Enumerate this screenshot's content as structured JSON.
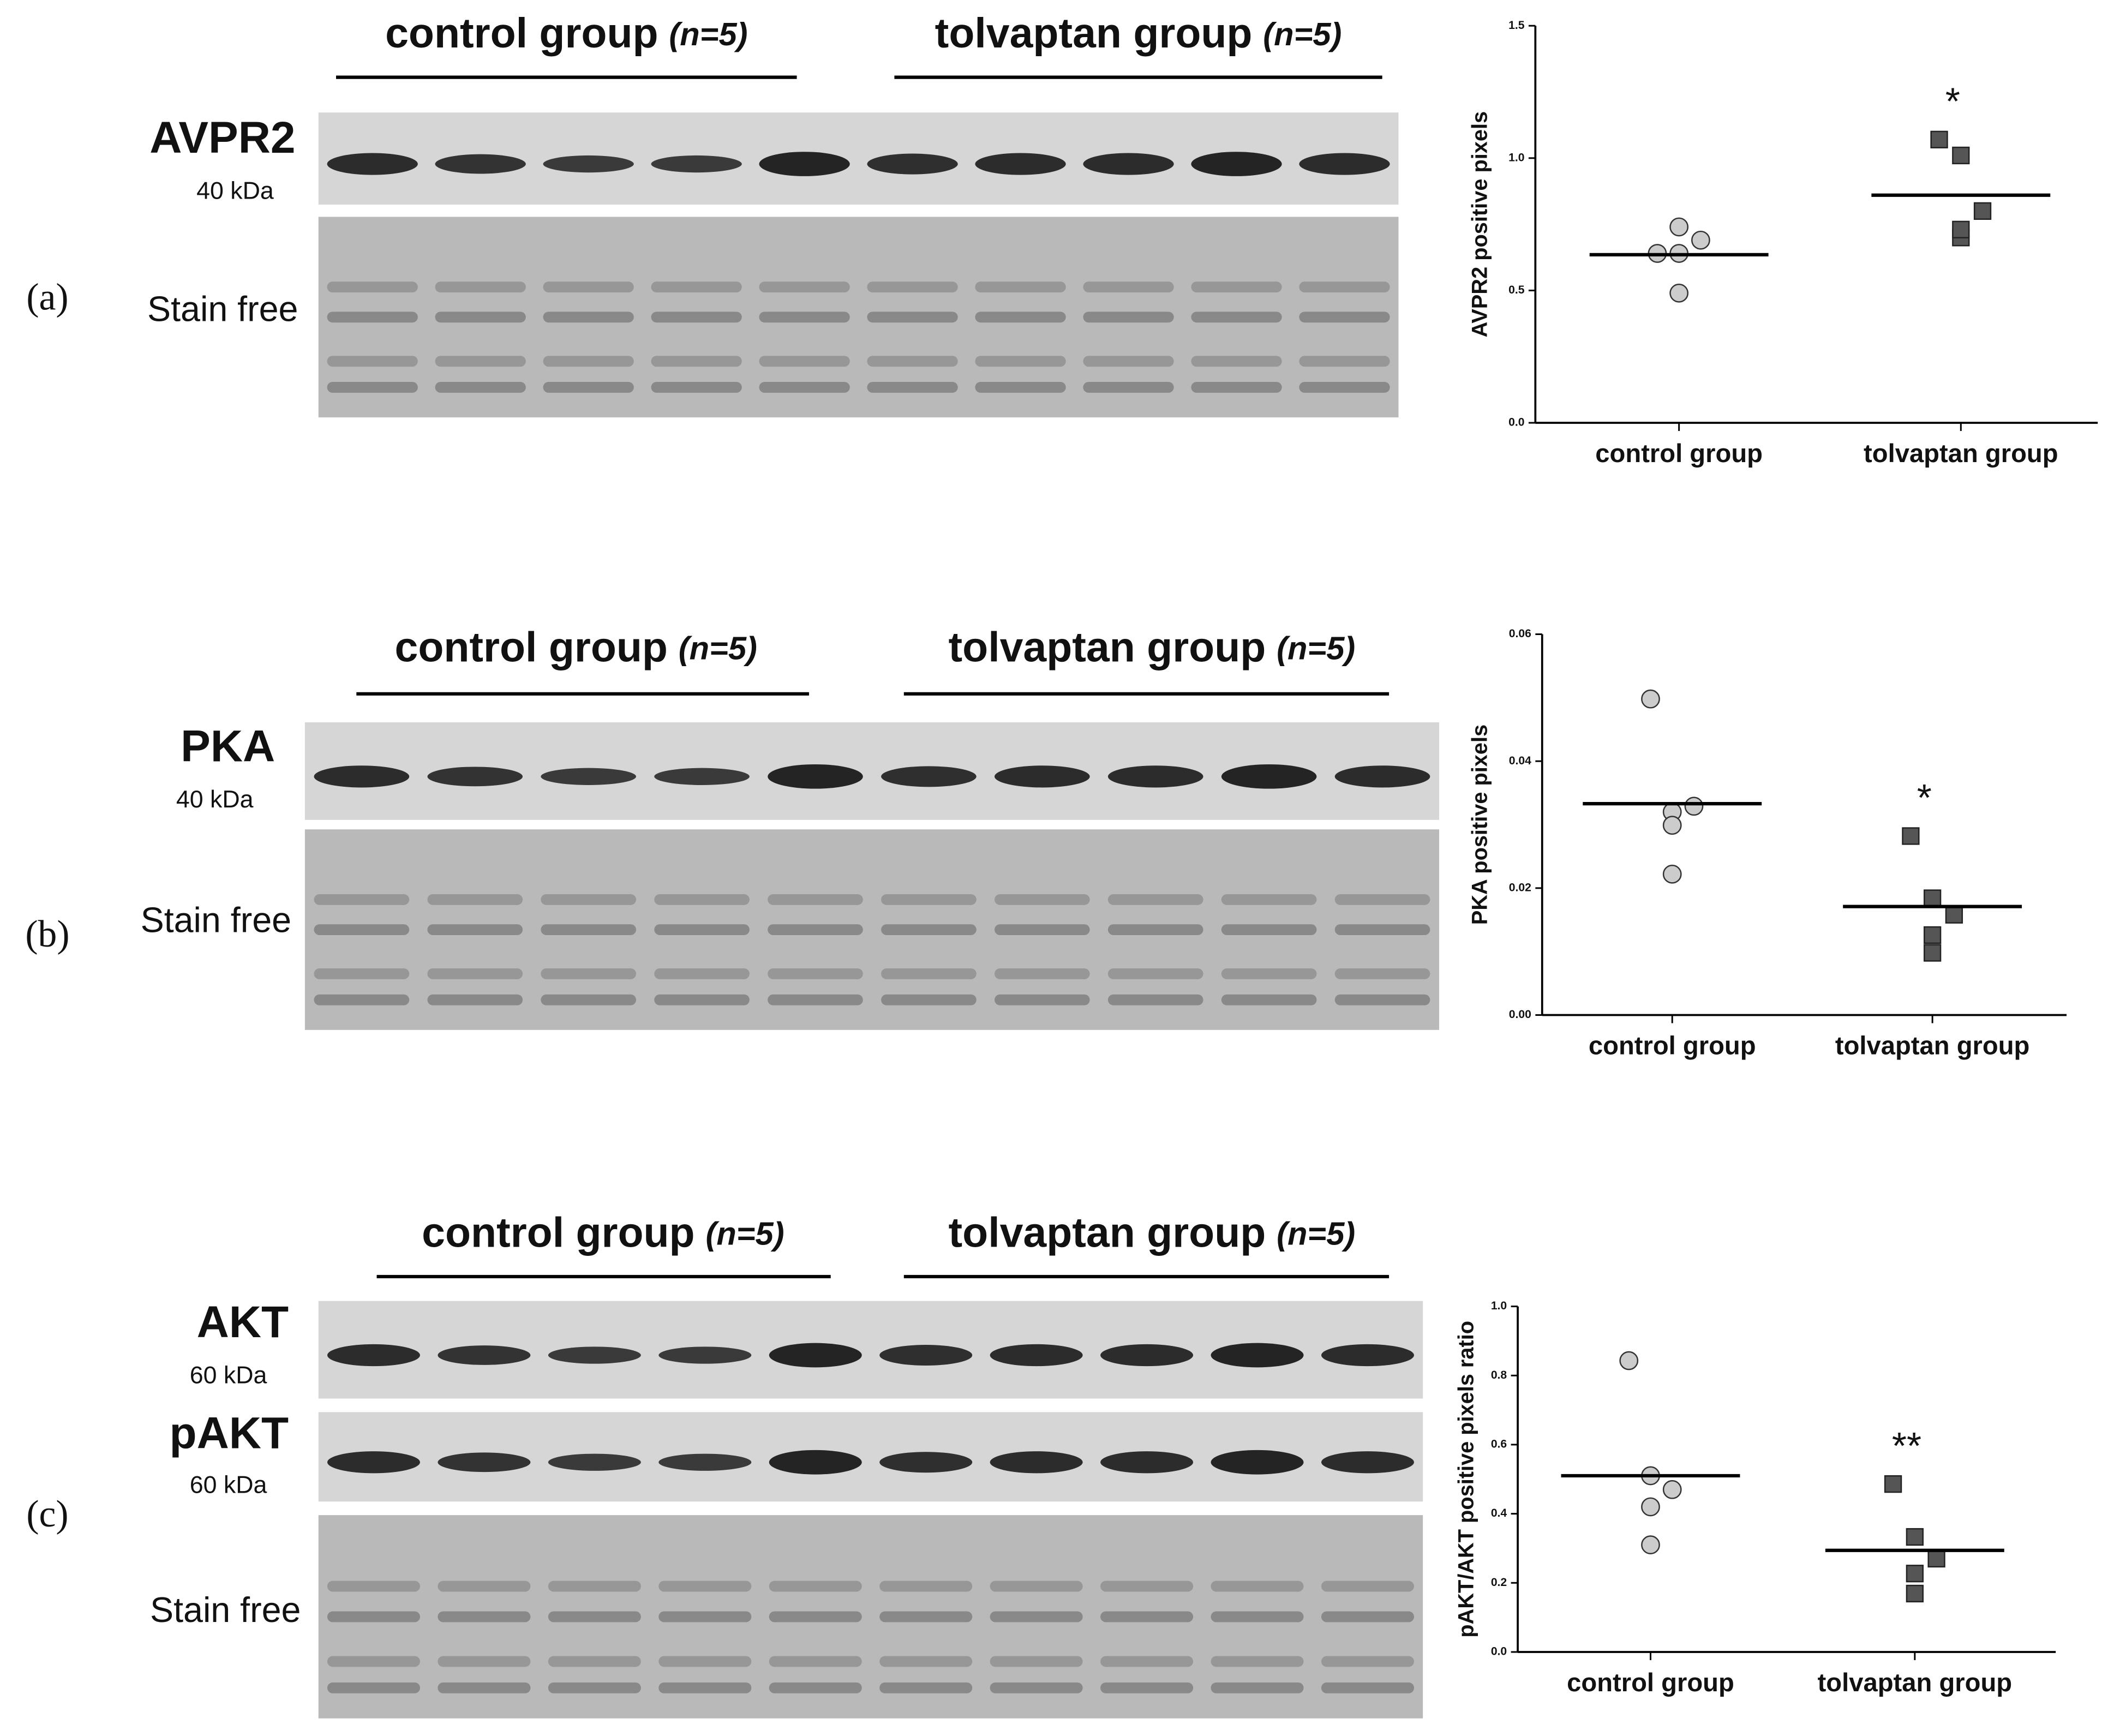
{
  "panels": [
    {
      "label": "(a)",
      "groups": [
        {
          "name": "control group",
          "n": "(n=5)"
        },
        {
          "name": "tolvaptan group",
          "n": "(n=5)"
        }
      ],
      "blots": [
        {
          "name": "AVPR2",
          "size": "40 kDa"
        },
        {
          "name": "Stain free"
        }
      ]
    },
    {
      "label": "(b)",
      "groups": [
        {
          "name": "control group",
          "n": "(n=5)"
        },
        {
          "name": "tolvaptan group",
          "n": "(n=5)"
        }
      ],
      "blots": [
        {
          "name": "PKA",
          "size": "40 kDa"
        },
        {
          "name": "Stain free"
        }
      ]
    },
    {
      "label": "(c)",
      "groups": [
        {
          "name": "control group",
          "n": "(n=5)"
        },
        {
          "name": "tolvaptan group",
          "n": "(n=5)"
        }
      ],
      "blots": [
        {
          "name": "AKT",
          "size": "60 kDa"
        },
        {
          "name": "pAKT",
          "size": "60 kDa"
        },
        {
          "name": "Stain free"
        }
      ]
    }
  ],
  "chart_data": [
    {
      "type": "scatter",
      "y_label": "AVPR2 positive pixels",
      "categories": [
        "control group",
        "tolvaptan group"
      ],
      "groups": [
        {
          "marker": "circle",
          "color": "#cccccc",
          "values": [
            0.64,
            0.74,
            0.69,
            0.64,
            0.49
          ],
          "mean": 0.635
        },
        {
          "marker": "square",
          "color": "#555555",
          "values": [
            1.07,
            1.01,
            0.8,
            0.7,
            0.73
          ],
          "mean": 0.86,
          "annotation": "*"
        }
      ],
      "ylim": [
        0,
        1.5
      ],
      "yticks": [
        {
          "value": 0,
          "label": "0.0"
        },
        0.5,
        {
          "value": 1,
          "label": "1.0"
        },
        1.5
      ]
    },
    {
      "type": "scatter",
      "y_label": "PKA positive pixels",
      "categories": [
        "control group",
        "tolvaptan group"
      ],
      "groups": [
        {
          "marker": "circle",
          "color": "#cccccc",
          "values": [
            0.0498,
            0.032,
            0.0329,
            0.0299,
            0.0222
          ],
          "mean": 0.0333
        },
        {
          "marker": "square",
          "color": "#555555",
          "values": [
            0.0282,
            0.0184,
            0.0158,
            0.0126,
            0.0098
          ],
          "mean": 0.0171,
          "annotation": "*"
        }
      ],
      "ylim": [
        0,
        0.06
      ],
      "yticks": [
        {
          "value": 0,
          "label": "0.00"
        },
        0.02,
        0.04,
        0.06
      ]
    },
    {
      "type": "scatter",
      "y_label": "pAKT/AKT positive pixels ratio",
      "categories": [
        "control group",
        "tolvaptan group"
      ],
      "groups": [
        {
          "marker": "circle",
          "color": "#cccccc",
          "values": [
            0.843,
            0.51,
            0.47,
            0.42,
            0.31
          ],
          "mean": 0.51
        },
        {
          "marker": "square",
          "color": "#555555",
          "values": [
            0.486,
            0.333,
            0.27,
            0.227,
            0.169
          ],
          "mean": 0.294,
          "annotation": "**"
        }
      ],
      "ylim": [
        0,
        1
      ],
      "yticks": [
        {
          "value": 0,
          "label": "0.0"
        },
        0.2,
        0.4,
        0.6,
        0.8,
        {
          "value": 1,
          "label": "1.0"
        }
      ]
    }
  ]
}
